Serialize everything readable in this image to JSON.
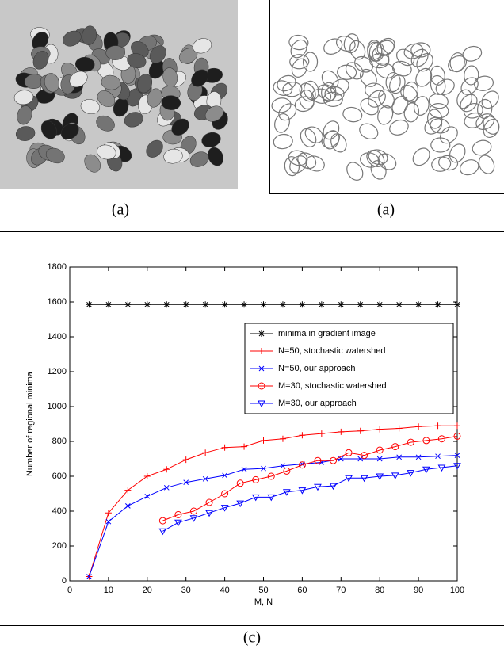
{
  "panels": [
    {
      "caption": "(a)"
    },
    {
      "caption": "(a)"
    }
  ],
  "figure_caption": "(c)",
  "chart_data": {
    "type": "line",
    "xlabel": "M, N",
    "ylabel": "Number of regional minima",
    "xlim": [
      0,
      100
    ],
    "xticks": [
      0,
      10,
      20,
      30,
      40,
      50,
      60,
      70,
      80,
      90,
      100
    ],
    "ylim": [
      0,
      1800
    ],
    "yticks": [
      0,
      200,
      400,
      600,
      800,
      1000,
      1200,
      1400,
      1600,
      1800
    ],
    "legend": "upper right",
    "series": [
      {
        "name": "minima in gradient image",
        "color": "#000000",
        "marker": "star",
        "x": [
          5,
          10,
          15,
          20,
          25,
          30,
          35,
          40,
          45,
          50,
          55,
          60,
          65,
          70,
          75,
          80,
          85,
          90,
          95,
          100
        ],
        "values": [
          1585,
          1585,
          1585,
          1585,
          1585,
          1585,
          1585,
          1585,
          1585,
          1585,
          1585,
          1585,
          1585,
          1585,
          1585,
          1585,
          1585,
          1585,
          1585,
          1585
        ]
      },
      {
        "name": "N=50, stochastic watershed",
        "color": "#ff0000",
        "marker": "plus",
        "x": [
          5,
          10,
          15,
          20,
          25,
          30,
          35,
          40,
          45,
          50,
          55,
          60,
          65,
          70,
          75,
          80,
          85,
          90,
          95,
          100
        ],
        "values": [
          25,
          390,
          520,
          600,
          640,
          695,
          735,
          765,
          770,
          805,
          815,
          835,
          845,
          855,
          860,
          870,
          875,
          885,
          890,
          890
        ]
      },
      {
        "name": "N=50, our approach",
        "color": "#0000ff",
        "marker": "x",
        "x": [
          5,
          10,
          15,
          20,
          25,
          30,
          35,
          40,
          45,
          50,
          55,
          60,
          65,
          70,
          75,
          80,
          85,
          90,
          95,
          100
        ],
        "values": [
          25,
          340,
          430,
          485,
          535,
          565,
          585,
          605,
          640,
          645,
          660,
          670,
          680,
          700,
          700,
          700,
          710,
          710,
          715,
          720
        ]
      },
      {
        "name": "M=30, stochastic watershed",
        "color": "#ff0000",
        "marker": "circle",
        "x": [
          24,
          28,
          32,
          36,
          40,
          44,
          48,
          52,
          56,
          60,
          64,
          68,
          72,
          76,
          80,
          84,
          88,
          92,
          96,
          100
        ],
        "values": [
          345,
          380,
          400,
          450,
          500,
          560,
          580,
          600,
          630,
          665,
          690,
          690,
          735,
          720,
          750,
          770,
          795,
          805,
          815,
          830
        ]
      },
      {
        "name": "M=30, our approach",
        "color": "#0000ff",
        "marker": "triangle",
        "x": [
          24,
          28,
          32,
          36,
          40,
          44,
          48,
          52,
          56,
          60,
          64,
          68,
          72,
          76,
          80,
          84,
          88,
          92,
          96,
          100
        ],
        "values": [
          285,
          335,
          360,
          390,
          420,
          445,
          480,
          480,
          510,
          520,
          540,
          545,
          590,
          590,
          600,
          605,
          620,
          640,
          650,
          660
        ]
      }
    ]
  }
}
